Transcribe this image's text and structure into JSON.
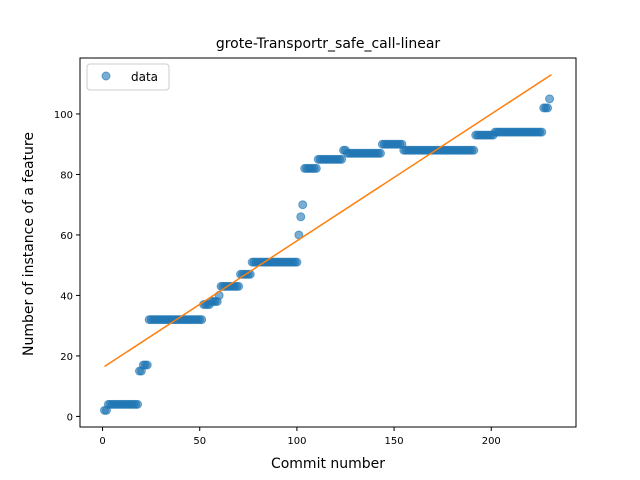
{
  "chart_data": {
    "type": "scatter",
    "title": "grote-Transportr_safe_call-linear",
    "xlabel": "Commit number",
    "ylabel": "Number of instance of a feature",
    "xlim": [
      -11.6,
      243.6
    ],
    "ylim": [
      -3.5,
      118.5
    ],
    "xticks": [
      0,
      50,
      100,
      150,
      200
    ],
    "yticks": [
      0,
      20,
      40,
      60,
      80,
      100
    ],
    "legend": {
      "position": "top-left",
      "entries": [
        "data"
      ]
    },
    "colors": {
      "data": "#1f77b4",
      "fit": "#ff7f0e"
    },
    "series": [
      {
        "name": "data",
        "kind": "scatter",
        "runs": [
          {
            "from": 1,
            "to": 2,
            "y": 2
          },
          {
            "from": 3,
            "to": 18,
            "y": 4
          },
          {
            "from": 19,
            "to": 20,
            "y": 15
          },
          {
            "from": 21,
            "to": 23,
            "y": 17
          },
          {
            "from": 24,
            "to": 51,
            "y": 32
          },
          {
            "from": 52,
            "to": 55,
            "y": 37
          },
          {
            "from": 56,
            "to": 59,
            "y": 38
          },
          {
            "from": 60,
            "to": 60,
            "y": 40
          },
          {
            "from": 61,
            "to": 70,
            "y": 43
          },
          {
            "from": 71,
            "to": 76,
            "y": 47
          },
          {
            "from": 77,
            "to": 100,
            "y": 51
          },
          {
            "from": 101,
            "to": 101,
            "y": 60
          },
          {
            "from": 102,
            "to": 102,
            "y": 66
          },
          {
            "from": 103,
            "to": 103,
            "y": 70
          },
          {
            "from": 104,
            "to": 110,
            "y": 82
          },
          {
            "from": 111,
            "to": 123,
            "y": 85
          },
          {
            "from": 124,
            "to": 125,
            "y": 88
          },
          {
            "from": 126,
            "to": 143,
            "y": 87
          },
          {
            "from": 144,
            "to": 154,
            "y": 90
          },
          {
            "from": 155,
            "to": 191,
            "y": 88
          },
          {
            "from": 192,
            "to": 201,
            "y": 93
          },
          {
            "from": 202,
            "to": 226,
            "y": 94
          },
          {
            "from": 227,
            "to": 229,
            "y": 102
          },
          {
            "from": 230,
            "to": 230,
            "y": 105
          }
        ]
      },
      {
        "kind": "line",
        "x": [
          1,
          231
        ],
        "y": [
          16.5,
          113
        ]
      }
    ]
  }
}
